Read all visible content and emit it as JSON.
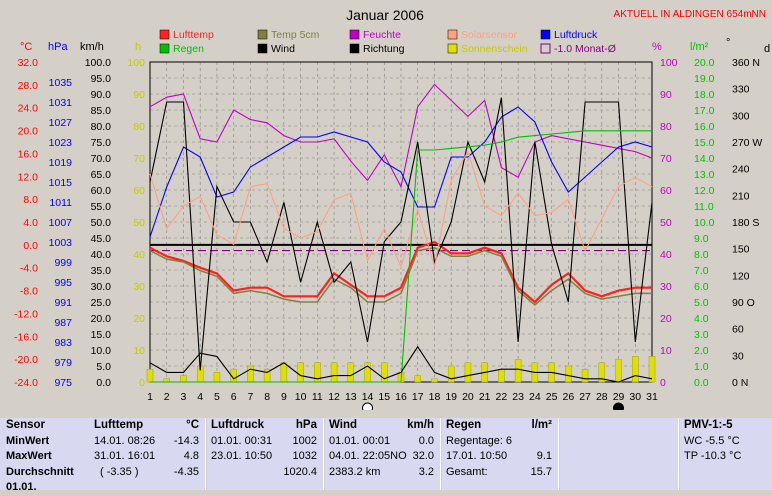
{
  "header": {
    "title": "Januar 2006",
    "location": "AKTUELL IN ALDINGEN 654mNN"
  },
  "legend": [
    {
      "label": "Lufttemp",
      "color": "#ff2020",
      "kind": "box"
    },
    {
      "label": "Regen",
      "color": "#00c000",
      "kind": "box"
    },
    {
      "label": "Temp 5cm",
      "color": "#808040",
      "kind": "box"
    },
    {
      "label": "Wind",
      "color": "#000000",
      "kind": "box"
    },
    {
      "label": "Feuchte",
      "color": "#c000c0",
      "kind": "box"
    },
    {
      "label": "Richtung",
      "color": "#000000",
      "kind": "box"
    },
    {
      "label": "Solarsensor",
      "color": "#ffa080",
      "kind": "box"
    },
    {
      "label": "Sonnenschein",
      "color": "#e0e000",
      "kind": "box"
    },
    {
      "label": "Luftdruck",
      "color": "#0000ff",
      "kind": "box"
    },
    {
      "label": "-1.0 Monat-Ø",
      "color": "#800080",
      "kind": "dash"
    }
  ],
  "axes_headers": {
    "temp_unit": "°C",
    "pressure_unit": "hPa",
    "wind_unit": "km/h",
    "sun_unit": "h",
    "humidity_unit": "%",
    "rain_unit": "l/m²",
    "direction_unit": "°",
    "direction_letter": "d"
  },
  "chart_data": {
    "type": "line",
    "title": "Januar 2006",
    "x": [
      1,
      2,
      3,
      4,
      5,
      6,
      7,
      8,
      9,
      10,
      11,
      12,
      13,
      14,
      15,
      16,
      17,
      18,
      19,
      20,
      21,
      22,
      23,
      24,
      25,
      26,
      27,
      28,
      29,
      30,
      31
    ],
    "xlim": [
      1,
      31
    ],
    "axes": {
      "temp_ticks": [
        "32.0",
        "28.0",
        "24.0",
        "20.0",
        "16.0",
        "12.0",
        "8.0",
        "4.0",
        "0.0",
        "-4.0",
        "-8.0",
        "-12.0",
        "-16.0",
        "-20.0",
        "-24.0"
      ],
      "temp_ylim": [
        -24,
        32
      ],
      "pressure_ticks": [
        "1035",
        "1031",
        "1027",
        "1023",
        "1019",
        "1015",
        "1011",
        "1007",
        "1003",
        "999",
        "995",
        "991",
        "987",
        "983",
        "979",
        "975"
      ],
      "pressure_ylim": [
        975,
        1039
      ],
      "wind_ticks": [
        "100.0",
        "95.0",
        "90.0",
        "85.0",
        "80.0",
        "75.0",
        "70.0",
        "65.0",
        "60.0",
        "55.0",
        "50.0",
        "45.0",
        "40.0",
        "35.0",
        "30.0",
        "25.0",
        "20.0",
        "15.0",
        "10.0",
        "5.0",
        "0.0"
      ],
      "wind_ylim": [
        0,
        100
      ],
      "sun_ticks": [
        "100",
        "90",
        "80",
        "70",
        "60",
        "50",
        "40",
        "30",
        "20",
        "10",
        "0"
      ],
      "humidity_ticks": [
        "100",
        "90",
        "80",
        "70",
        "60",
        "50",
        "40",
        "30",
        "20",
        "10",
        "0"
      ],
      "humidity_ylim": [
        0,
        100
      ],
      "rain_ticks": [
        "20.0",
        "19.0",
        "18.0",
        "17.0",
        "16.0",
        "15.0",
        "14.0",
        "13.0",
        "12.0",
        "11.0",
        "10.0",
        "9.0",
        "8.0",
        "7.0",
        "6.0",
        "5.0",
        "4.0",
        "3.0",
        "2.0",
        "1.0",
        "0.0"
      ],
      "rain_ylim": [
        0,
        20
      ],
      "direction_ticks": [
        "360 N",
        "330",
        "300",
        "270 W",
        "240",
        "210",
        "180 S",
        "150",
        "120",
        "90 O",
        "60",
        "30",
        "0 N"
      ],
      "direction_ylim": [
        0,
        360
      ]
    },
    "series": [
      {
        "name": "Lufttemp",
        "color": "#ff2020",
        "axis": "temp",
        "values": [
          -0.5,
          -2.0,
          -2.8,
          -4.0,
          -5.0,
          -8.0,
          -7.5,
          -7.5,
          -9.0,
          -9.0,
          -9.0,
          -5.0,
          -7.0,
          -9.0,
          -9.0,
          -7.5,
          -0.5,
          0.5,
          -1.5,
          -1.5,
          -0.5,
          -1.5,
          -7.5,
          -10.0,
          -7.0,
          -5.0,
          -8.0,
          -9.0,
          -8.0,
          -7.5,
          -7.5
        ]
      },
      {
        "name": "Temp 5cm",
        "color": "#808040",
        "axis": "temp",
        "values": [
          -1.0,
          -2.5,
          -3.0,
          -4.5,
          -5.5,
          -8.5,
          -8.0,
          -8.5,
          -9.5,
          -10.0,
          -10.0,
          -6.0,
          -7.5,
          -10.0,
          -10.0,
          -8.5,
          -1.0,
          -0.5,
          -2.0,
          -2.0,
          -1.0,
          -2.0,
          -8.0,
          -10.5,
          -8.0,
          -6.0,
          -8.5,
          -9.5,
          -9.0,
          -8.5,
          -8.5
        ]
      },
      {
        "name": "Feuchte",
        "color": "#c000c0",
        "axis": "humidity",
        "values": [
          86,
          89,
          90,
          76,
          75,
          85,
          82,
          81,
          77,
          75,
          75,
          76,
          69,
          63,
          71,
          61,
          86,
          93,
          88,
          83,
          88,
          67,
          64,
          75,
          77,
          76,
          75,
          74,
          73,
          72,
          70
        ]
      },
      {
        "name": "Luftdruck",
        "color": "#0000ff",
        "axis": "pressure",
        "values": [
          1004,
          1014,
          1022,
          1020,
          1012,
          1013,
          1018,
          1020,
          1022,
          1024,
          1024,
          1025,
          1024,
          1023,
          1019,
          1017,
          1010,
          1010,
          1020,
          1020,
          1023,
          1028,
          1030,
          1027,
          1019,
          1013,
          1016,
          1019,
          1022,
          1023,
          1022
        ]
      },
      {
        "name": "Richtung",
        "color": "#000000",
        "axis": "direction",
        "values": [
          225,
          315,
          315,
          13,
          220,
          180,
          180,
          135,
          202,
          112,
          180,
          112,
          135,
          45,
          158,
          180,
          270,
          135,
          180,
          270,
          225,
          320,
          45,
          270,
          155,
          90,
          315,
          315,
          315,
          45,
          202
        ]
      },
      {
        "name": "Solarsensor",
        "color": "#ffa080",
        "axis": "humidity",
        "values": [
          65,
          48,
          55,
          58,
          46,
          43,
          61,
          62,
          48,
          45,
          47,
          57,
          59,
          38,
          48,
          36,
          54,
          36,
          63,
          72,
          55,
          52,
          59,
          52,
          53,
          57,
          41,
          51,
          61,
          64,
          61
        ]
      },
      {
        "name": "Regen",
        "color": "#00c000",
        "axis": "rain",
        "values": [
          0.0,
          0.0,
          0.0,
          0.0,
          0.0,
          0.0,
          0.0,
          0.0,
          0.0,
          0.0,
          0.0,
          0.0,
          0.0,
          0.0,
          0.0,
          0.0,
          14.5,
          14.5,
          14.6,
          14.7,
          14.8,
          15.0,
          15.3,
          15.4,
          15.5,
          15.6,
          15.7,
          15.7,
          15.7,
          15.7,
          15.7
        ]
      },
      {
        "name": "Wind",
        "color": "#000000",
        "axis": "wind",
        "values": [
          6,
          3,
          3,
          9,
          8,
          1,
          4,
          3,
          6,
          2,
          1,
          2,
          2,
          5,
          1,
          3,
          11,
          3,
          1,
          2,
          3,
          4,
          4,
          3,
          3,
          2,
          1,
          1,
          0,
          2,
          1
        ]
      },
      {
        "name": "Sonnenschein",
        "color": "#e0e000",
        "axis": "sun",
        "kind": "bar",
        "values": [
          4,
          1,
          2,
          5,
          3,
          4,
          5,
          4,
          6,
          6,
          6,
          6,
          6,
          6,
          6,
          3,
          2,
          1,
          5,
          6,
          6,
          4,
          7,
          6,
          6,
          5,
          4,
          6,
          7,
          8,
          8
        ]
      }
    ],
    "reference_lines": [
      {
        "name": "Monat-Ø",
        "axis": "temp",
        "value": -1.0,
        "style": "dash",
        "color": "#800080"
      },
      {
        "name": "baseline",
        "axis": "temp",
        "value": 0.0,
        "style": "solid",
        "color": "#000000"
      }
    ],
    "moon_phases": [
      {
        "day": 14,
        "phase": "Vollmond",
        "symbol": "open"
      },
      {
        "day": 29,
        "phase": "Neumond",
        "symbol": "filled"
      }
    ],
    "grid": true
  },
  "summary": {
    "sensor": {
      "header": "Sensor",
      "rows": [
        "MinWert",
        "MaxWert",
        "Durchschnitt",
        "01.01."
      ]
    },
    "lufttemp": {
      "header": "Lufttemp",
      "unit": "°C",
      "rows": [
        [
          "14.01.  08:26",
          "-14.3"
        ],
        [
          "31.01.  16:01",
          "4.8"
        ],
        [
          "( -3.35 )",
          "-4.35"
        ]
      ]
    },
    "luftdruck": {
      "header": "Luftdruck",
      "unit": "hPa",
      "rows": [
        [
          "01.01.  00:31",
          "1002"
        ],
        [
          "23.01.  10:50",
          "1032"
        ],
        [
          "",
          "1020.4"
        ]
      ]
    },
    "wind": {
      "header": "Wind",
      "unit": "km/h",
      "rows": [
        [
          "01.01.  00:01",
          "0.0"
        ],
        [
          "04.01.  22:05NO",
          "32.0"
        ],
        [
          "2383.2 km",
          "3.2"
        ]
      ]
    },
    "regen": {
      "header": "Regen",
      "unit": "l/m²",
      "rows": [
        [
          "Regentage: 6",
          ""
        ],
        [
          "17.01.  10:50",
          "9.1"
        ],
        [
          "Gesamt:",
          "15.7"
        ]
      ]
    },
    "pmv": {
      "header": "PMV-1:-5",
      "rows": [
        "WC -5.5 °C",
        "TP -10.3 °C"
      ]
    }
  }
}
